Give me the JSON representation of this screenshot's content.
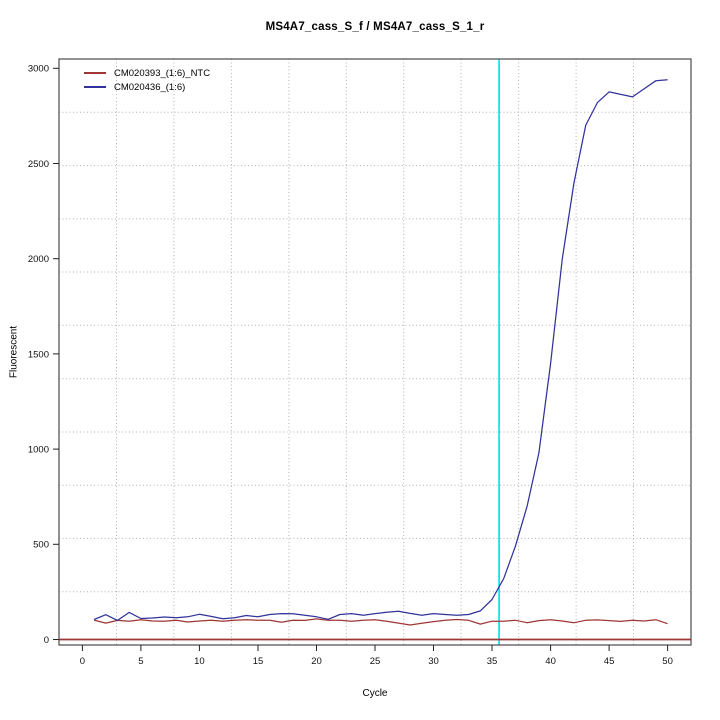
{
  "chart_data": {
    "type": "line",
    "title": "MS4A7_cass_S_f / MS4A7_cass_S_1_r",
    "xlabel": "Cycle",
    "ylabel": "Fluorescent",
    "x_ticks": [
      0,
      5,
      10,
      15,
      20,
      25,
      30,
      35,
      40,
      45,
      50
    ],
    "y_ticks": [
      0,
      500,
      1000,
      1500,
      2000,
      2500,
      3000
    ],
    "xlim": [
      -2,
      52
    ],
    "ylim": [
      -29,
      3049
    ],
    "grid": {
      "style": "dotted",
      "color": "#b3b3b3",
      "x_values": [
        2.91,
        7.82,
        12.73,
        17.64,
        22.55,
        27.45,
        32.36,
        37.27,
        42.18,
        47.09
      ],
      "y_values": [
        251,
        531,
        810,
        1090,
        1370,
        1650,
        1930,
        2209,
        2489,
        2769
      ]
    },
    "frame_color": "#4a4a4a",
    "tick_color": "#222222",
    "ct_line": {
      "x": 35.6,
      "color": "#00e6e6"
    },
    "threshold_line": {
      "y": 0,
      "color": "#9e3634"
    },
    "legend_position": "top-left",
    "x": [
      1,
      2,
      3,
      4,
      5,
      6,
      7,
      8,
      9,
      10,
      11,
      12,
      13,
      14,
      15,
      16,
      17,
      18,
      19,
      20,
      21,
      22,
      23,
      24,
      25,
      26,
      27,
      28,
      29,
      30,
      31,
      32,
      33,
      34,
      35,
      36,
      37,
      38,
      39,
      40,
      41,
      42,
      43,
      44,
      45,
      46,
      47,
      48,
      49,
      50
    ],
    "series": [
      {
        "name": "CM020393_(1:6)_NTC",
        "color": "#9e3634",
        "values": [
          102,
          86,
          100,
          96,
          104,
          97,
          96,
          101,
          92,
          97,
          101,
          96,
          101,
          104,
          101,
          101,
          91,
          101,
          100,
          108,
          101,
          101,
          96,
          101,
          104,
          96,
          86,
          76,
          85,
          94,
          101,
          105,
          101,
          81,
          96,
          96,
          101,
          88,
          99,
          104,
          97,
          88,
          101,
          103,
          99,
          95,
          101,
          97,
          104,
          83
        ]
      },
      {
        "name": "CM020436_(1:6)",
        "color": "#32329b",
        "values": [
          105,
          130,
          100,
          142,
          110,
          113,
          118,
          114,
          119,
          132,
          121,
          109,
          114,
          126,
          119,
          131,
          136,
          135,
          127,
          119,
          106,
          131,
          136,
          127,
          136,
          143,
          148,
          137,
          127,
          136,
          131,
          127,
          131,
          150,
          210,
          320,
          490,
          700,
          980,
          1450,
          2000,
          2400,
          2700,
          2820,
          2876,
          2863,
          2850,
          2893,
          2935,
          2940
        ]
      }
    ]
  }
}
